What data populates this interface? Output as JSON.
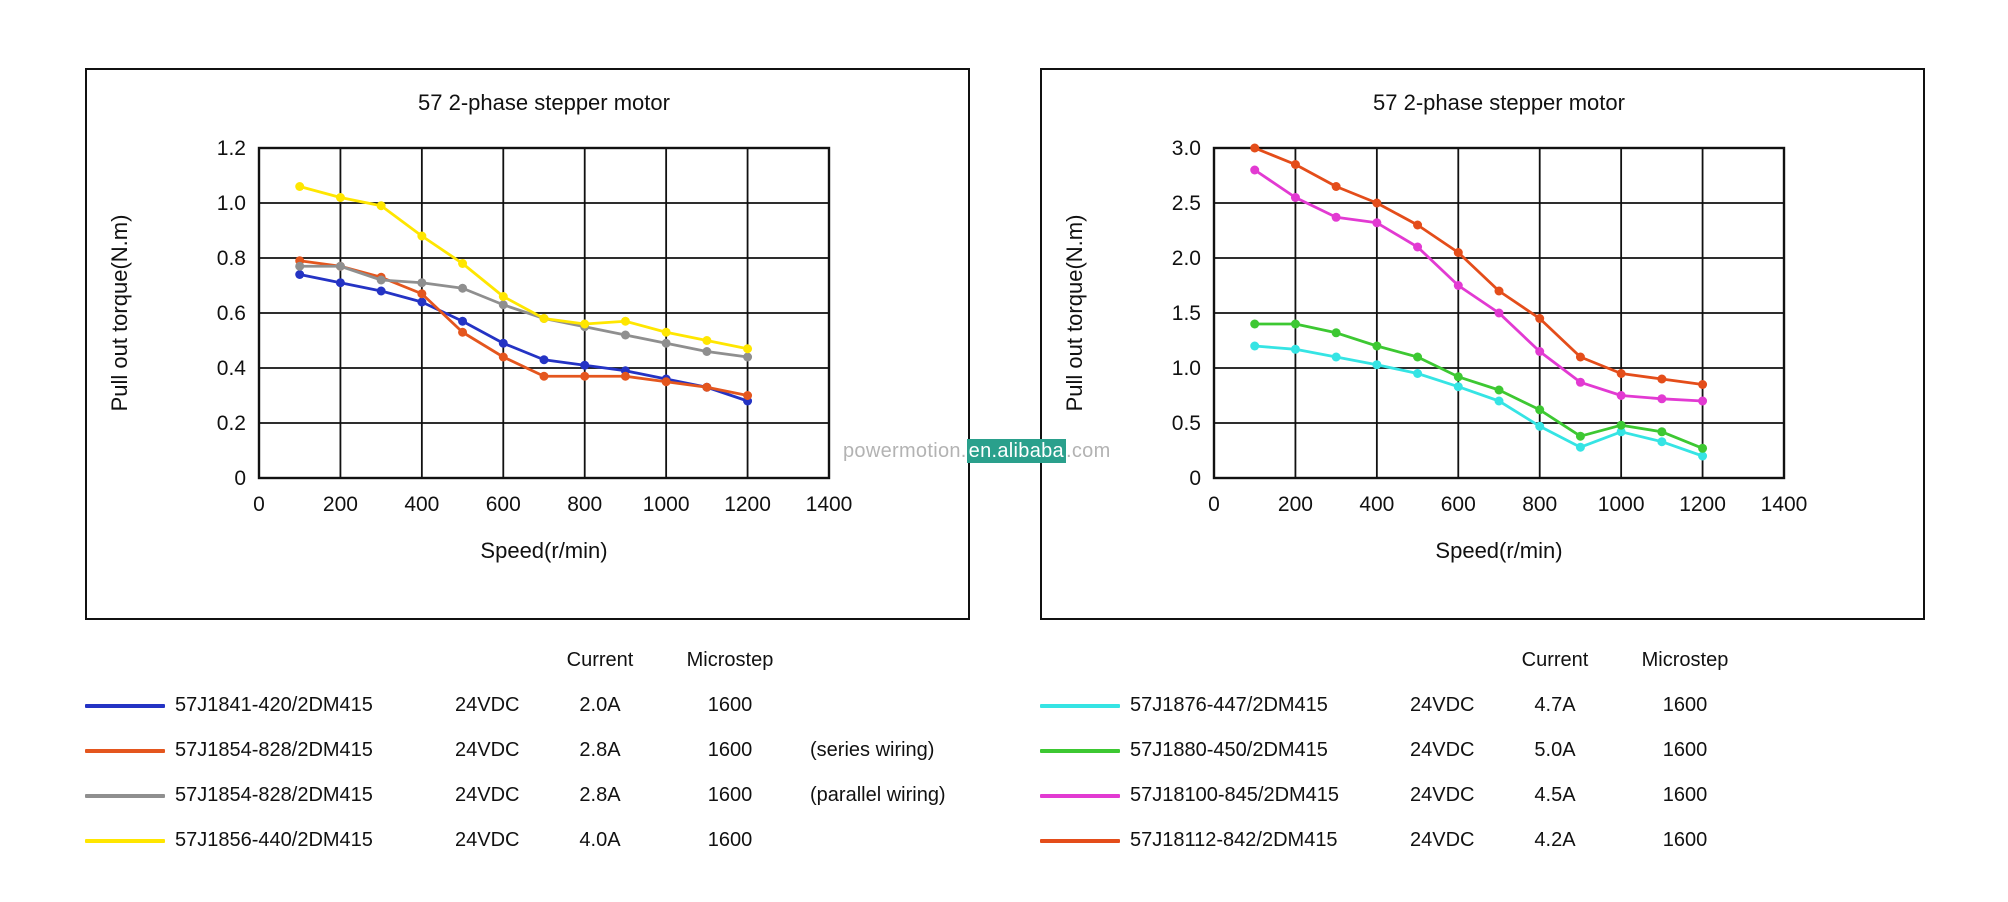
{
  "watermark": {
    "prefix": "powermotion.",
    "highlight": "en.alibaba",
    "suffix": ".com"
  },
  "chart_data": [
    {
      "type": "line",
      "title": "57 2-phase stepper motor",
      "xlabel": "Speed(r/min)",
      "ylabel": "Pull out torque(N.m)",
      "xlim": [
        0,
        1400
      ],
      "ylim": [
        0,
        1.2
      ],
      "grid": true,
      "xtick_vals": [
        0,
        200,
        400,
        600,
        800,
        1000,
        1200,
        1400
      ],
      "xtick_labels": [
        "0",
        "200",
        "400",
        "600",
        "800",
        "1000",
        "1200",
        "1400"
      ],
      "ytick_vals": [
        0,
        0.2,
        0.4,
        0.6,
        0.8,
        1.0,
        1.2
      ],
      "ytick_labels": [
        "0",
        "0.2",
        "0.4",
        "0.6",
        "0.8",
        "1.0",
        "1.2"
      ],
      "x": [
        100,
        200,
        300,
        400,
        500,
        600,
        700,
        800,
        900,
        1000,
        1100,
        1200
      ],
      "series": [
        {
          "name": "57J1841-420/2DM415",
          "color": "#2433c4",
          "values": [
            0.74,
            0.71,
            0.68,
            0.64,
            0.57,
            0.49,
            0.43,
            0.41,
            0.39,
            0.36,
            0.33,
            0.28
          ]
        },
        {
          "name": "57J1854-828/2DM415 (series wiring)",
          "color": "#e4561e",
          "values": [
            0.79,
            0.77,
            0.73,
            0.67,
            0.53,
            0.44,
            0.37,
            0.37,
            0.37,
            0.35,
            0.33,
            0.3
          ]
        },
        {
          "name": "57J1854-828/2DM415 (parallel wiring)",
          "color": "#8f8f8f",
          "values": [
            0.77,
            0.77,
            0.72,
            0.71,
            0.69,
            0.63,
            0.58,
            0.55,
            0.52,
            0.49,
            0.46,
            0.44
          ]
        },
        {
          "name": "57J1856-440/2DM415",
          "color": "#ffe600",
          "values": [
            1.06,
            1.02,
            0.99,
            0.88,
            0.78,
            0.66,
            0.58,
            0.56,
            0.57,
            0.53,
            0.5,
            0.47
          ]
        }
      ],
      "legend": {
        "header_current": "Current",
        "header_microstep": "Microstep",
        "rows": [
          {
            "model": "57J1841-420/2DM415",
            "voltage": "24VDC",
            "current": "2.0A",
            "microstep": "1600",
            "note": "",
            "color": "#2433c4"
          },
          {
            "model": "57J1854-828/2DM415",
            "voltage": "24VDC",
            "current": "2.8A",
            "microstep": "1600",
            "note": "(series wiring)",
            "color": "#e4561e"
          },
          {
            "model": "57J1854-828/2DM415",
            "voltage": "24VDC",
            "current": "2.8A",
            "microstep": "1600",
            "note": "(parallel wiring)",
            "color": "#8f8f8f"
          },
          {
            "model": "57J1856-440/2DM415",
            "voltage": "24VDC",
            "current": "4.0A",
            "microstep": "1600",
            "note": "",
            "color": "#ffe600"
          }
        ]
      }
    },
    {
      "type": "line",
      "title": "57 2-phase stepper motor",
      "xlabel": "Speed(r/min)",
      "ylabel": "Pull out torque(N.m)",
      "xlim": [
        0,
        1400
      ],
      "ylim": [
        0,
        3.0
      ],
      "grid": true,
      "xtick_vals": [
        0,
        200,
        400,
        600,
        800,
        1000,
        1200,
        1400
      ],
      "xtick_labels": [
        "0",
        "200",
        "400",
        "600",
        "800",
        "1000",
        "1200",
        "1400"
      ],
      "ytick_vals": [
        0,
        0.5,
        1.0,
        1.5,
        2.0,
        2.5,
        3.0
      ],
      "ytick_labels": [
        "0",
        "0.5",
        "1.0",
        "1.5",
        "2.0",
        "2.5",
        "3.0"
      ],
      "x": [
        100,
        200,
        300,
        400,
        500,
        600,
        700,
        800,
        900,
        1000,
        1100,
        1200
      ],
      "series": [
        {
          "name": "57J1876-447/2DM415",
          "color": "#35e4e4",
          "values": [
            1.2,
            1.17,
            1.1,
            1.03,
            0.95,
            0.83,
            0.7,
            0.47,
            0.28,
            0.42,
            0.33,
            0.2
          ]
        },
        {
          "name": "57J1880-450/2DM415",
          "color": "#3dc832",
          "values": [
            1.4,
            1.4,
            1.32,
            1.2,
            1.1,
            0.92,
            0.8,
            0.62,
            0.38,
            0.48,
            0.42,
            0.27
          ]
        },
        {
          "name": "57J18100-845/2DM415",
          "color": "#e23ad2",
          "values": [
            2.8,
            2.55,
            2.37,
            2.32,
            2.1,
            1.75,
            1.5,
            1.15,
            0.87,
            0.75,
            0.72,
            0.7
          ]
        },
        {
          "name": "57J18112-842/2DM415",
          "color": "#e44d1a",
          "values": [
            3.0,
            2.85,
            2.65,
            2.5,
            2.3,
            2.05,
            1.7,
            1.45,
            1.1,
            0.95,
            0.9,
            0.85
          ]
        }
      ],
      "legend": {
        "header_current": "Current",
        "header_microstep": "Microstep",
        "rows": [
          {
            "model": "57J1876-447/2DM415",
            "voltage": "24VDC",
            "current": "4.7A",
            "microstep": "1600",
            "note": "",
            "color": "#35e4e4"
          },
          {
            "model": "57J1880-450/2DM415",
            "voltage": "24VDC",
            "current": "5.0A",
            "microstep": "1600",
            "note": "",
            "color": "#3dc832"
          },
          {
            "model": "57J18100-845/2DM415",
            "voltage": "24VDC",
            "current": "4.5A",
            "microstep": "1600",
            "note": "",
            "color": "#e23ad2"
          },
          {
            "model": "57J18112-842/2DM415",
            "voltage": "24VDC",
            "current": "4.2A",
            "microstep": "1600",
            "note": "",
            "color": "#e44d1a"
          }
        ]
      }
    }
  ]
}
